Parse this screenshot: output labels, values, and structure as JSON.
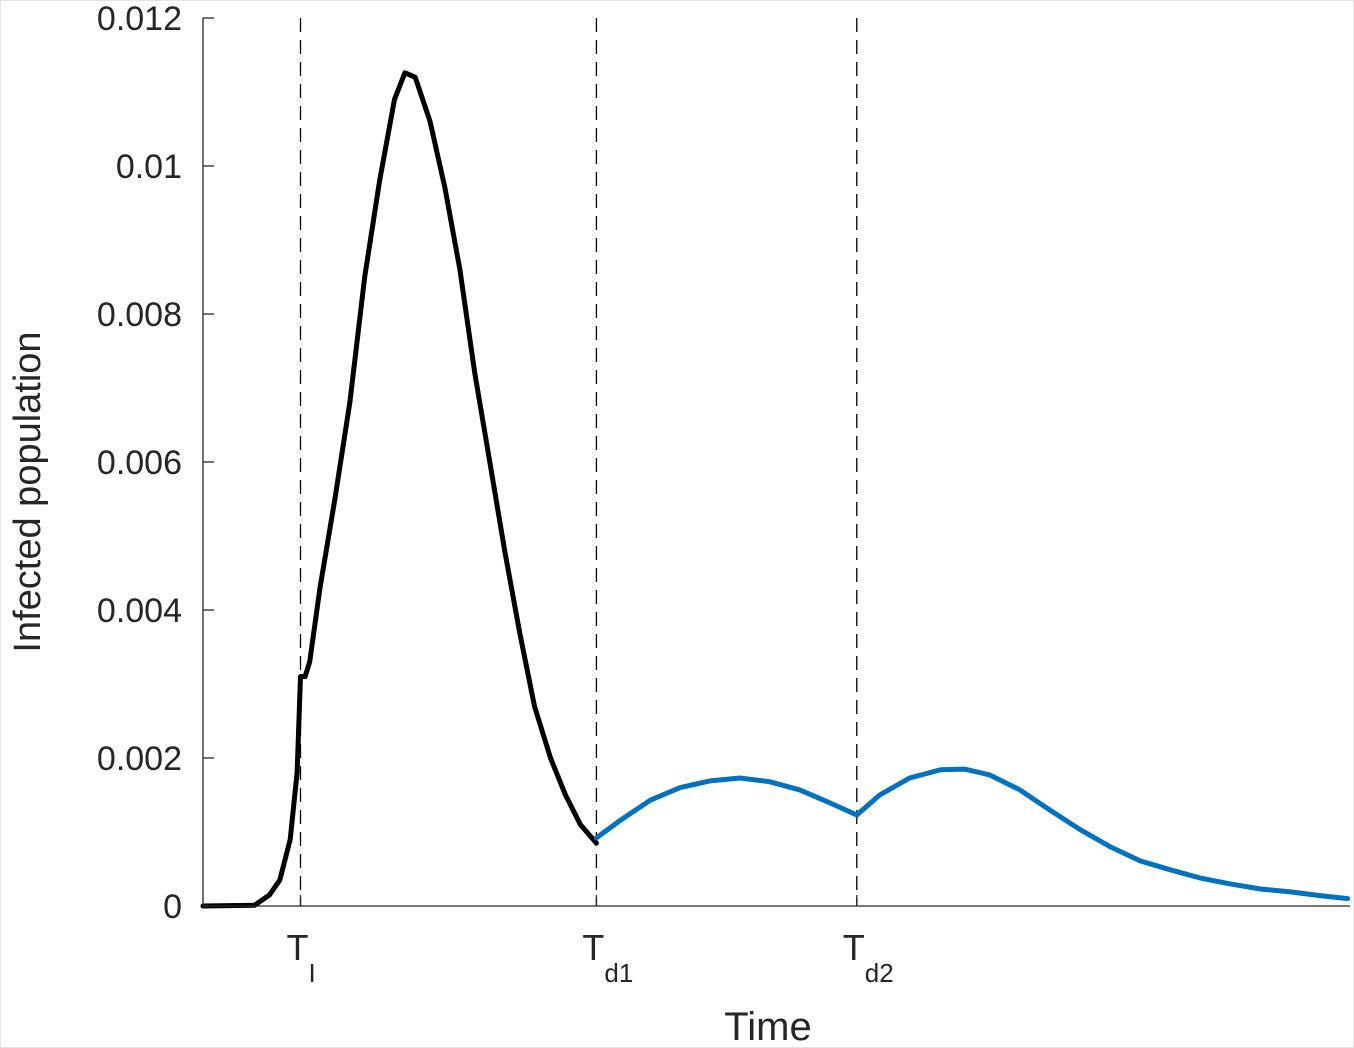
{
  "chart_data": {
    "type": "line",
    "title": "",
    "xlabel": "Time",
    "ylabel": "Infected population",
    "xlim": [
      0,
      100
    ],
    "ylim": [
      0,
      0.012
    ],
    "grid": false,
    "yticks": [
      {
        "value": 0,
        "label": "0"
      },
      {
        "value": 0.002,
        "label": "0.002"
      },
      {
        "value": 0.004,
        "label": "0.004"
      },
      {
        "value": 0.006,
        "label": "0.006"
      },
      {
        "value": 0.008,
        "label": "0.008"
      },
      {
        "value": 0.01,
        "label": "0.01"
      },
      {
        "value": 0.012,
        "label": "0.012"
      }
    ],
    "xticks": [
      {
        "value": 8.5,
        "label": "T",
        "sub": "I"
      },
      {
        "value": 34.3,
        "label": "T",
        "sub": "d1"
      },
      {
        "value": 57.0,
        "label": "T",
        "sub": "d2"
      }
    ],
    "vertical_dashed_lines_at": [
      8.5,
      34.3,
      57.0
    ],
    "series": [
      {
        "color": "#000000",
        "x": [
          0,
          4.5,
          5.8,
          6.7,
          7.6,
          8.2,
          8.5,
          8.9,
          9.3,
          10.2,
          11.5,
          12.8,
          14.1,
          15.4,
          16.7,
          17.6,
          18.5,
          19.8,
          21.1,
          22.4,
          23.7,
          25.0,
          26.3,
          27.6,
          28.9,
          30.3,
          31.6,
          32.9,
          34.3
        ],
        "y": [
          0,
          1e-05,
          0.00015,
          0.00035,
          0.0009,
          0.0018,
          0.0031,
          0.0031,
          0.0033,
          0.0043,
          0.0055,
          0.0068,
          0.0085,
          0.0098,
          0.0109,
          0.01126,
          0.0112,
          0.0106,
          0.0097,
          0.0086,
          0.0072,
          0.006,
          0.0048,
          0.0037,
          0.0027,
          0.002,
          0.0015,
          0.0011,
          0.00085
        ]
      },
      {
        "color": "#0072BD",
        "x": [
          34.3,
          36.4,
          39.0,
          41.6,
          44.2,
          46.8,
          49.4,
          52.0,
          54.7,
          57.0,
          59.0,
          61.6,
          64.3,
          66.4,
          68.6,
          71.2,
          73.8,
          76.5,
          79.1,
          81.7,
          84.3,
          86.9,
          89.5,
          92.2,
          94.8,
          97.4,
          99.8
        ],
        "y": [
          0.00092,
          0.00116,
          0.00143,
          0.0016,
          0.00169,
          0.00173,
          0.00168,
          0.00157,
          0.00139,
          0.00123,
          0.0015,
          0.00173,
          0.00184,
          0.00185,
          0.00177,
          0.00157,
          0.0013,
          0.00103,
          0.0008,
          0.00061,
          0.00049,
          0.00038,
          0.0003,
          0.00023,
          0.00019,
          0.00014,
          0.0001
        ]
      }
    ]
  }
}
